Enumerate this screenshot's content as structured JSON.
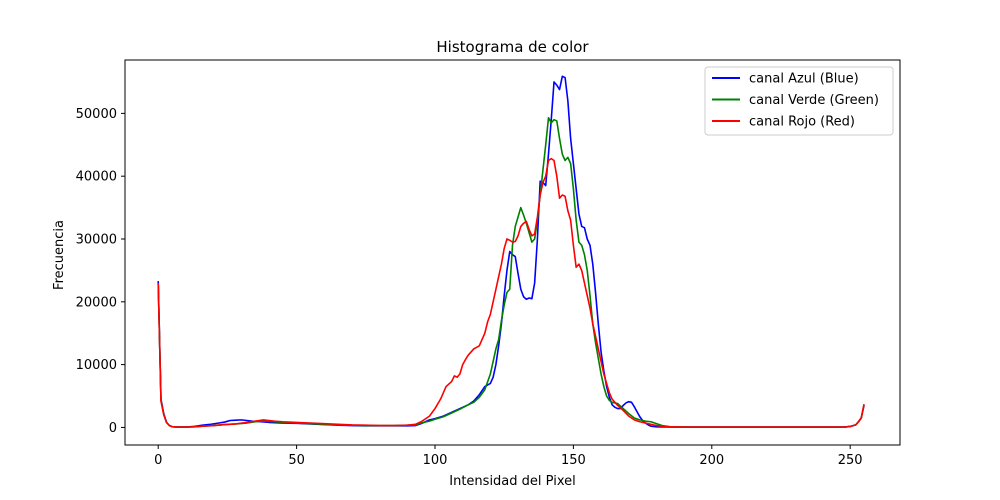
{
  "chart_data": {
    "type": "line",
    "title": "Histograma de color",
    "xlabel": "Intensidad del Pixel",
    "ylabel": "Frecuencia",
    "xlim": [
      -12,
      268
    ],
    "ylim": [
      -2800,
      58500
    ],
    "xticks": [
      0,
      50,
      100,
      150,
      200,
      250
    ],
    "yticks": [
      0,
      10000,
      20000,
      30000,
      40000,
      50000
    ],
    "grid": false,
    "legend_position": "top-right",
    "series": [
      {
        "name": "canal Azul (Blue)",
        "color": "#0000ff",
        "points": [
          [
            0,
            23300
          ],
          [
            1,
            4500
          ],
          [
            2,
            2200
          ],
          [
            3,
            800
          ],
          [
            4,
            300
          ],
          [
            5,
            120
          ],
          [
            7,
            60
          ],
          [
            10,
            60
          ],
          [
            13,
            150
          ],
          [
            16,
            350
          ],
          [
            19,
            500
          ],
          [
            22,
            700
          ],
          [
            24,
            850
          ],
          [
            26,
            1100
          ],
          [
            28,
            1150
          ],
          [
            30,
            1200
          ],
          [
            32,
            1100
          ],
          [
            34,
            1000
          ],
          [
            36,
            950
          ],
          [
            40,
            800
          ],
          [
            45,
            700
          ],
          [
            50,
            650
          ],
          [
            55,
            550
          ],
          [
            60,
            450
          ],
          [
            65,
            350
          ],
          [
            70,
            300
          ],
          [
            75,
            250
          ],
          [
            80,
            250
          ],
          [
            85,
            250
          ],
          [
            90,
            250
          ],
          [
            93,
            300
          ],
          [
            95,
            600
          ],
          [
            98,
            1200
          ],
          [
            100,
            1400
          ],
          [
            103,
            1800
          ],
          [
            106,
            2400
          ],
          [
            109,
            3000
          ],
          [
            112,
            3600
          ],
          [
            114,
            4200
          ],
          [
            116,
            5200
          ],
          [
            118,
            6500
          ],
          [
            120,
            7000
          ],
          [
            121,
            8000
          ],
          [
            122,
            10000
          ],
          [
            123,
            13000
          ],
          [
            124,
            16500
          ],
          [
            125,
            21000
          ],
          [
            126,
            25000
          ],
          [
            127,
            28000
          ],
          [
            128,
            27500
          ],
          [
            129,
            27200
          ],
          [
            130,
            24500
          ],
          [
            131,
            22000
          ],
          [
            132,
            20800
          ],
          [
            133,
            20400
          ],
          [
            134,
            20600
          ],
          [
            135,
            20500
          ],
          [
            136,
            23000
          ],
          [
            137,
            30000
          ],
          [
            138,
            39200
          ],
          [
            139,
            39000
          ],
          [
            140,
            38500
          ],
          [
            141,
            43500
          ],
          [
            142,
            49000
          ],
          [
            143,
            55000
          ],
          [
            144,
            54500
          ],
          [
            145,
            53800
          ],
          [
            146,
            55900
          ],
          [
            147,
            55700
          ],
          [
            148,
            52000
          ],
          [
            149,
            46000
          ],
          [
            150,
            42000
          ],
          [
            151,
            38000
          ],
          [
            152,
            34000
          ],
          [
            153,
            32000
          ],
          [
            154,
            31800
          ],
          [
            155,
            30000
          ],
          [
            156,
            29000
          ],
          [
            157,
            26000
          ],
          [
            158,
            21500
          ],
          [
            159,
            16500
          ],
          [
            160,
            12000
          ],
          [
            161,
            9000
          ],
          [
            162,
            6500
          ],
          [
            163,
            4800
          ],
          [
            164,
            3600
          ],
          [
            165,
            3200
          ],
          [
            166,
            3000
          ],
          [
            167,
            3000
          ],
          [
            168,
            3500
          ],
          [
            169,
            3900
          ],
          [
            170,
            4100
          ],
          [
            171,
            4000
          ],
          [
            172,
            3300
          ],
          [
            173,
            2500
          ],
          [
            174,
            1700
          ],
          [
            175,
            1100
          ],
          [
            176,
            700
          ],
          [
            177,
            400
          ],
          [
            178,
            200
          ],
          [
            180,
            100
          ],
          [
            185,
            50
          ],
          [
            200,
            50
          ],
          [
            220,
            50
          ],
          [
            240,
            50
          ],
          [
            248,
            60
          ],
          [
            250,
            150
          ],
          [
            252,
            400
          ],
          [
            253,
            900
          ],
          [
            254,
            1500
          ],
          [
            255,
            3500
          ]
        ]
      },
      {
        "name": "canal Verde (Green)",
        "color": "#008000",
        "points": [
          [
            0,
            23000
          ],
          [
            1,
            4300
          ],
          [
            2,
            2100
          ],
          [
            3,
            800
          ],
          [
            4,
            300
          ],
          [
            5,
            120
          ],
          [
            7,
            60
          ],
          [
            10,
            60
          ],
          [
            13,
            100
          ],
          [
            16,
            200
          ],
          [
            20,
            300
          ],
          [
            24,
            450
          ],
          [
            28,
            550
          ],
          [
            32,
            700
          ],
          [
            35,
            900
          ],
          [
            38,
            1000
          ],
          [
            42,
            900
          ],
          [
            45,
            800
          ],
          [
            50,
            700
          ],
          [
            55,
            600
          ],
          [
            60,
            500
          ],
          [
            65,
            400
          ],
          [
            70,
            350
          ],
          [
            75,
            300
          ],
          [
            80,
            300
          ],
          [
            85,
            300
          ],
          [
            90,
            350
          ],
          [
            93,
            400
          ],
          [
            95,
            700
          ],
          [
            98,
            1000
          ],
          [
            100,
            1300
          ],
          [
            103,
            1700
          ],
          [
            106,
            2300
          ],
          [
            109,
            2900
          ],
          [
            112,
            3600
          ],
          [
            114,
            4000
          ],
          [
            116,
            4800
          ],
          [
            118,
            6000
          ],
          [
            120,
            8500
          ],
          [
            121,
            10500
          ],
          [
            122,
            12500
          ],
          [
            123,
            14000
          ],
          [
            124,
            17000
          ],
          [
            125,
            19500
          ],
          [
            126,
            21500
          ],
          [
            127,
            22000
          ],
          [
            128,
            29000
          ],
          [
            129,
            32000
          ],
          [
            130,
            33500
          ],
          [
            131,
            35000
          ],
          [
            132,
            33800
          ],
          [
            133,
            32500
          ],
          [
            134,
            31000
          ],
          [
            135,
            29500
          ],
          [
            136,
            30000
          ],
          [
            137,
            33000
          ],
          [
            138,
            37000
          ],
          [
            139,
            41000
          ],
          [
            140,
            45000
          ],
          [
            141,
            49300
          ],
          [
            142,
            48500
          ],
          [
            143,
            49000
          ],
          [
            144,
            48800
          ],
          [
            145,
            46000
          ],
          [
            146,
            43500
          ],
          [
            147,
            42500
          ],
          [
            148,
            43000
          ],
          [
            149,
            42000
          ],
          [
            150,
            38000
          ],
          [
            151,
            33000
          ],
          [
            152,
            29500
          ],
          [
            153,
            29000
          ],
          [
            154,
            27500
          ],
          [
            155,
            25000
          ],
          [
            156,
            21000
          ],
          [
            157,
            16500
          ],
          [
            158,
            13500
          ],
          [
            159,
            11000
          ],
          [
            160,
            8500
          ],
          [
            161,
            6500
          ],
          [
            162,
            5000
          ],
          [
            163,
            4300
          ],
          [
            164,
            4000
          ],
          [
            166,
            3800
          ],
          [
            168,
            3000
          ],
          [
            170,
            2200
          ],
          [
            172,
            1500
          ],
          [
            174,
            1200
          ],
          [
            176,
            1000
          ],
          [
            178,
            900
          ],
          [
            180,
            600
          ],
          [
            182,
            300
          ],
          [
            185,
            100
          ],
          [
            190,
            50
          ],
          [
            200,
            50
          ],
          [
            220,
            50
          ],
          [
            240,
            50
          ],
          [
            248,
            60
          ],
          [
            250,
            150
          ],
          [
            252,
            400
          ],
          [
            253,
            900
          ],
          [
            254,
            1500
          ],
          [
            255,
            3600
          ]
        ]
      },
      {
        "name": "canal Rojo (Red)",
        "color": "#ff0000",
        "points": [
          [
            0,
            23000
          ],
          [
            1,
            4200
          ],
          [
            2,
            2000
          ],
          [
            3,
            800
          ],
          [
            4,
            300
          ],
          [
            5,
            120
          ],
          [
            7,
            60
          ],
          [
            10,
            60
          ],
          [
            13,
            100
          ],
          [
            16,
            200
          ],
          [
            20,
            300
          ],
          [
            24,
            450
          ],
          [
            28,
            550
          ],
          [
            32,
            800
          ],
          [
            35,
            1000
          ],
          [
            38,
            1200
          ],
          [
            42,
            1000
          ],
          [
            45,
            900
          ],
          [
            50,
            800
          ],
          [
            55,
            700
          ],
          [
            60,
            600
          ],
          [
            65,
            500
          ],
          [
            70,
            400
          ],
          [
            75,
            350
          ],
          [
            80,
            300
          ],
          [
            85,
            300
          ],
          [
            90,
            350
          ],
          [
            93,
            500
          ],
          [
            95,
            900
          ],
          [
            98,
            1800
          ],
          [
            100,
            3000
          ],
          [
            102,
            4500
          ],
          [
            104,
            6500
          ],
          [
            106,
            7300
          ],
          [
            107,
            8200
          ],
          [
            108,
            8000
          ],
          [
            109,
            8500
          ],
          [
            110,
            10000
          ],
          [
            111,
            10800
          ],
          [
            112,
            11500
          ],
          [
            114,
            12500
          ],
          [
            116,
            13000
          ],
          [
            118,
            15000
          ],
          [
            119,
            16800
          ],
          [
            120,
            18000
          ],
          [
            121,
            20000
          ],
          [
            122,
            22000
          ],
          [
            123,
            24000
          ],
          [
            124,
            26000
          ],
          [
            125,
            28500
          ],
          [
            126,
            30000
          ],
          [
            127,
            29800
          ],
          [
            128,
            29500
          ],
          [
            129,
            29600
          ],
          [
            130,
            30500
          ],
          [
            131,
            32000
          ],
          [
            132,
            32500
          ],
          [
            133,
            32800
          ],
          [
            134,
            31500
          ],
          [
            135,
            30500
          ],
          [
            136,
            30800
          ],
          [
            137,
            33500
          ],
          [
            138,
            37000
          ],
          [
            139,
            39000
          ],
          [
            140,
            40000
          ],
          [
            141,
            42500
          ],
          [
            142,
            42800
          ],
          [
            143,
            42500
          ],
          [
            144,
            40000
          ],
          [
            145,
            36500
          ],
          [
            146,
            37000
          ],
          [
            147,
            36800
          ],
          [
            148,
            34500
          ],
          [
            149,
            33000
          ],
          [
            150,
            29000
          ],
          [
            151,
            25500
          ],
          [
            152,
            26000
          ],
          [
            153,
            25000
          ],
          [
            154,
            23000
          ],
          [
            155,
            21000
          ],
          [
            156,
            19000
          ],
          [
            157,
            16500
          ],
          [
            158,
            14500
          ],
          [
            159,
            12500
          ],
          [
            160,
            10500
          ],
          [
            161,
            8500
          ],
          [
            162,
            7000
          ],
          [
            163,
            5500
          ],
          [
            164,
            4500
          ],
          [
            166,
            3500
          ],
          [
            168,
            2700
          ],
          [
            170,
            1800
          ],
          [
            172,
            1200
          ],
          [
            174,
            900
          ],
          [
            176,
            700
          ],
          [
            178,
            500
          ],
          [
            180,
            300
          ],
          [
            182,
            200
          ],
          [
            185,
            100
          ],
          [
            190,
            50
          ],
          [
            200,
            50
          ],
          [
            220,
            50
          ],
          [
            240,
            50
          ],
          [
            248,
            60
          ],
          [
            250,
            150
          ],
          [
            252,
            400
          ],
          [
            253,
            900
          ],
          [
            254,
            1500
          ],
          [
            255,
            3700
          ]
        ]
      }
    ]
  }
}
